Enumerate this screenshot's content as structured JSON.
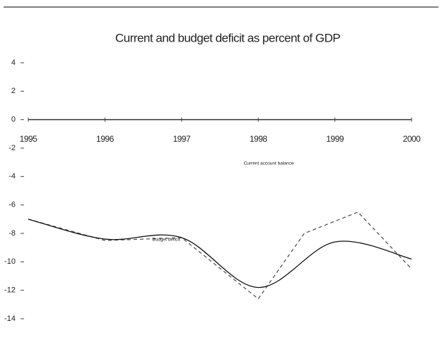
{
  "chart_data": {
    "type": "line",
    "title": "Current and budget deficit as percent of GDP",
    "series": [
      {
        "name": "Current account balance",
        "color": "#555555",
        "dash": true,
        "x": [
          1995,
          1996,
          1997,
          1998,
          1998.6,
          1999.3,
          2000
        ],
        "values": [
          -7,
          -8.5,
          -8.3,
          -12.6,
          -8,
          -6.5,
          -10.5
        ]
      },
      {
        "name": "Budget deficit",
        "color": "#111111",
        "dash": false,
        "x": [
          1995,
          1996,
          1997,
          1998,
          1999,
          2000
        ],
        "values": [
          -7,
          -8.4,
          -8.3,
          -11.8,
          -8.6,
          -9.8
        ]
      }
    ],
    "xlim": [
      1995,
      2000
    ],
    "xticks": [
      1995,
      1996,
      1997,
      1998,
      1999,
      2000
    ],
    "ylim": [
      -14,
      4
    ],
    "yticks": [
      4,
      2,
      0,
      -2,
      -4,
      -6,
      -8,
      -10,
      -12,
      -14
    ]
  }
}
